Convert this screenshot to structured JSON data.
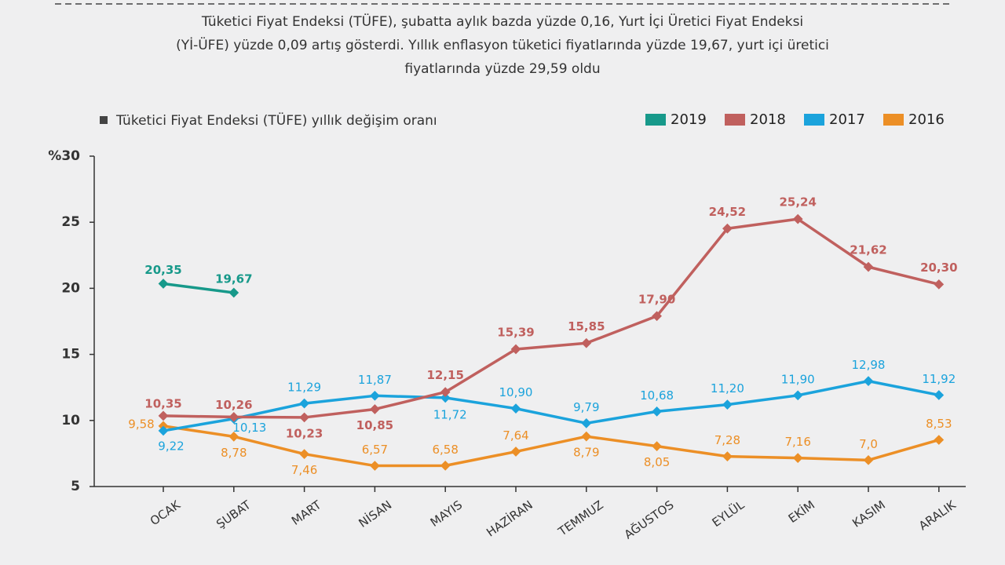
{
  "chart_data": {
    "type": "line",
    "title_lines": [
      "Tüketici Fiyat Endeksi (TÜFE), şubatta aylık bazda yüzde 0,16, Yurt İçi Üretici Fiyat Endeksi",
      "(Yİ-ÜFE) yüzde 0,09 artış gösterdi. Yıllık enflasyon tüketici fiyatlarında yüzde 19,67, yurt içi üretici",
      "fiyatlarında yüzde 29,59 oldu"
    ],
    "subtitle": "Tüketici Fiyat Endeksi (TÜFE) yıllık değişim oranı",
    "categories": [
      "OCAK",
      "ŞUBAT",
      "MART",
      "NİSAN",
      "MAYIS",
      "HAZİRAN",
      "TEMMUZ",
      "AĞUSTOS",
      "EYLÜL",
      "EKİM",
      "KASIM",
      "ARALIK"
    ],
    "ylim": [
      5,
      30
    ],
    "yticks": [
      5,
      10,
      15,
      20,
      25,
      {
        "value": 30,
        "label": "%30"
      }
    ],
    "series": [
      {
        "name": "2019",
        "color": "#17998a",
        "values": [
          20.35,
          19.67,
          null,
          null,
          null,
          null,
          null,
          null,
          null,
          null,
          null,
          null
        ],
        "value_labels": [
          "20,35",
          "19,67",
          null,
          null,
          null,
          null,
          null,
          null,
          null,
          null,
          null,
          null
        ]
      },
      {
        "name": "2018",
        "color": "#c0605e",
        "values": [
          10.35,
          10.26,
          10.23,
          10.85,
          12.15,
          15.39,
          15.85,
          17.9,
          24.52,
          25.24,
          21.62,
          20.3
        ],
        "value_labels": [
          "10,35",
          "10,26",
          "10,23",
          "10,85",
          "12,15",
          "15,39",
          "15,85",
          "17,90",
          "24,52",
          "25,24",
          "21,62",
          "20,30"
        ]
      },
      {
        "name": "2017",
        "color": "#1ba3dc",
        "values": [
          9.22,
          10.13,
          11.29,
          11.87,
          11.72,
          10.9,
          9.79,
          10.68,
          11.2,
          11.9,
          12.98,
          11.92
        ],
        "value_labels": [
          "9,22",
          "10,13",
          "11,29",
          "11,87",
          "11,72",
          "10,90",
          "9,79",
          "10,68",
          "11,20",
          "11,90",
          "12,98",
          "11,92"
        ]
      },
      {
        "name": "2016",
        "color": "#ec8f26",
        "values": [
          9.58,
          8.78,
          7.46,
          6.57,
          6.58,
          7.64,
          8.79,
          8.05,
          7.28,
          7.16,
          7.0,
          8.53
        ],
        "value_labels": [
          "9,58",
          "8,78",
          "7,46",
          "6,57",
          "6,58",
          "7,64",
          "8,79",
          "8,05",
          "7,28",
          "7,16",
          "7,0",
          "8,53"
        ]
      }
    ]
  }
}
